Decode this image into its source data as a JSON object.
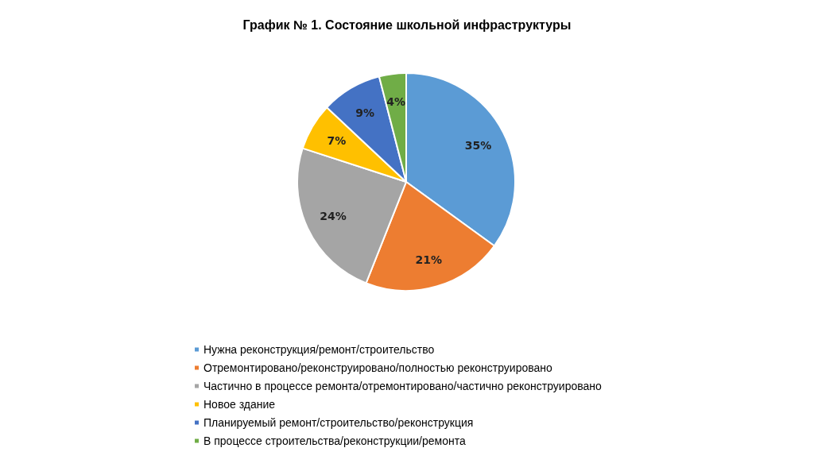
{
  "chart_data": {
    "type": "pie",
    "title": "График № 1. Состояние школьной инфраструктуры",
    "categories": [
      "Нужна реконструкция/ремонт/строительство",
      "Отремонтировано/реконструировано/полностью реконструировано",
      "Частично в процессе ремонта/отремонтировано/частично реконструировано",
      "Новое здание",
      "Планируемый ремонт/строительство/реконструкция",
      "В процессе строительства/реконструкции/ремонта"
    ],
    "values": [
      35,
      21,
      24,
      7,
      9,
      4
    ],
    "colors": [
      "#5b9bd5",
      "#ed7d31",
      "#a5a5a5",
      "#ffc000",
      "#4472c4",
      "#70ad47"
    ],
    "value_labels": [
      "35%",
      "21%",
      "24%",
      "7%",
      "9%",
      "4%"
    ],
    "legend": "bottom"
  }
}
